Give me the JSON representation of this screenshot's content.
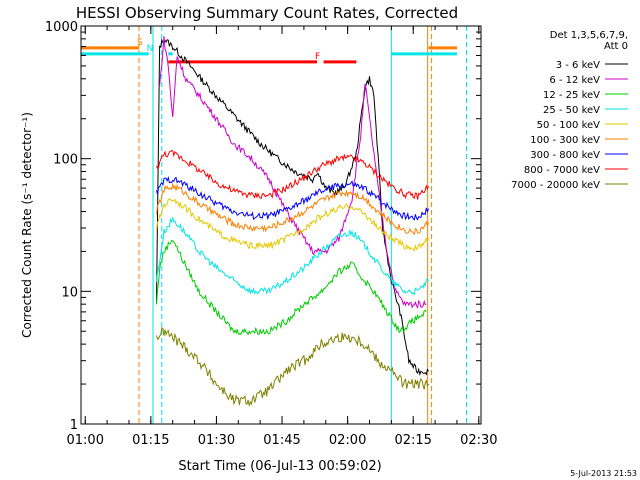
{
  "chart_data": {
    "type": "line",
    "title": "HESSI Observing Summary Count Rates, Corrected",
    "xlabel": "Start Time (06-Jul-13 00:59:02)",
    "ylabel": "Corrected Count Rate (s⁻¹ detector⁻¹)",
    "timestamp": "5-Jul-2013 21:53",
    "y_scale": "log",
    "ylim": [
      1,
      1000
    ],
    "xlim_min": [
      59.03,
      93.5
    ],
    "x_ticks": [
      "01:00",
      "01:15",
      "01:30",
      "01:45",
      "02:00",
      "02:15",
      "02:30"
    ],
    "y_ticks": [
      "1",
      "10",
      "100",
      "1000"
    ],
    "grid": false,
    "legend_header": [
      "Det 1,3,5,6,7,9,",
      "Att 0"
    ],
    "legend_placement": "right",
    "series": [
      {
        "name": "3 - 6 keV",
        "color": "#000000",
        "points": [
          [
            76.3,
            8
          ],
          [
            77,
            700
          ],
          [
            78,
            800
          ],
          [
            80,
            700
          ],
          [
            84,
            500
          ],
          [
            88,
            350
          ],
          [
            92,
            250
          ],
          [
            96,
            180
          ],
          [
            100,
            130
          ],
          [
            104,
            100
          ],
          [
            108,
            80
          ],
          [
            112,
            70
          ],
          [
            113,
            80
          ],
          [
            115,
            60
          ],
          [
            117,
            55
          ],
          [
            119,
            60
          ],
          [
            120,
            70
          ],
          [
            122,
            110
          ],
          [
            124,
            350
          ],
          [
            125,
            400
          ],
          [
            126,
            300
          ],
          [
            127,
            100
          ],
          [
            128,
            30
          ],
          [
            130,
            12
          ],
          [
            132,
            7
          ],
          [
            134,
            3
          ],
          [
            136,
            2.5
          ],
          [
            138,
            2.5
          ],
          [
            138.5,
            2.5
          ]
        ]
      },
      {
        "name": "6 - 12 keV",
        "color": "#cc00cc",
        "points": [
          [
            77,
            350
          ],
          [
            78,
            800
          ],
          [
            79,
            500
          ],
          [
            80,
            200
          ],
          [
            81,
            600
          ],
          [
            83,
            400
          ],
          [
            86,
            300
          ],
          [
            90,
            200
          ],
          [
            94,
            130
          ],
          [
            98,
            100
          ],
          [
            102,
            70
          ],
          [
            106,
            40
          ],
          [
            109,
            28
          ],
          [
            112,
            20
          ],
          [
            115,
            20
          ],
          [
            118,
            25
          ],
          [
            121,
            50
          ],
          [
            123,
            150
          ],
          [
            124,
            370
          ],
          [
            125,
            200
          ],
          [
            127,
            60
          ],
          [
            129,
            20
          ],
          [
            131,
            10
          ],
          [
            133,
            8
          ],
          [
            135,
            8
          ],
          [
            138,
            8
          ]
        ]
      },
      {
        "name": "12 - 25 keV",
        "color": "#00cc00",
        "points": [
          [
            76.3,
            8
          ],
          [
            77,
            15
          ],
          [
            78,
            20
          ],
          [
            80,
            25
          ],
          [
            82,
            18
          ],
          [
            86,
            10
          ],
          [
            90,
            7
          ],
          [
            94,
            5
          ],
          [
            98,
            5
          ],
          [
            102,
            5
          ],
          [
            106,
            6
          ],
          [
            110,
            8
          ],
          [
            114,
            10
          ],
          [
            118,
            14
          ],
          [
            121,
            16
          ],
          [
            123,
            13
          ],
          [
            126,
            10
          ],
          [
            129,
            7
          ],
          [
            132,
            5
          ],
          [
            135,
            6
          ],
          [
            138,
            7
          ]
        ]
      },
      {
        "name": "25 - 50 keV",
        "color": "#00e5e5",
        "points": [
          [
            76.3,
            12
          ],
          [
            78,
            28
          ],
          [
            80,
            35
          ],
          [
            82,
            30
          ],
          [
            86,
            20
          ],
          [
            90,
            15
          ],
          [
            94,
            12
          ],
          [
            98,
            10
          ],
          [
            102,
            10
          ],
          [
            106,
            12
          ],
          [
            110,
            15
          ],
          [
            114,
            20
          ],
          [
            118,
            26
          ],
          [
            121,
            28
          ],
          [
            124,
            22
          ],
          [
            127,
            16
          ],
          [
            130,
            12
          ],
          [
            133,
            10
          ],
          [
            136,
            10
          ],
          [
            138.5,
            12
          ]
        ]
      },
      {
        "name": "50 - 100 keV",
        "color": "#e5c800",
        "points": [
          [
            76.3,
            30
          ],
          [
            78,
            45
          ],
          [
            80,
            50
          ],
          [
            82,
            45
          ],
          [
            86,
            35
          ],
          [
            90,
            28
          ],
          [
            94,
            24
          ],
          [
            98,
            22
          ],
          [
            102,
            22
          ],
          [
            106,
            25
          ],
          [
            110,
            30
          ],
          [
            114,
            37
          ],
          [
            118,
            42
          ],
          [
            121,
            44
          ],
          [
            124,
            38
          ],
          [
            127,
            30
          ],
          [
            130,
            25
          ],
          [
            133,
            22
          ],
          [
            136,
            21
          ],
          [
            138.5,
            25
          ]
        ]
      },
      {
        "name": "100 - 300 keV",
        "color": "#ff7f00",
        "points": [
          [
            76.3,
            40
          ],
          [
            78,
            58
          ],
          [
            80,
            62
          ],
          [
            82,
            58
          ],
          [
            86,
            46
          ],
          [
            90,
            38
          ],
          [
            94,
            32
          ],
          [
            98,
            30
          ],
          [
            102,
            30
          ],
          [
            106,
            34
          ],
          [
            110,
            40
          ],
          [
            114,
            48
          ],
          [
            118,
            55
          ],
          [
            121,
            56
          ],
          [
            124,
            50
          ],
          [
            127,
            40
          ],
          [
            130,
            33
          ],
          [
            133,
            29
          ],
          [
            136,
            28
          ],
          [
            138.5,
            33
          ]
        ]
      },
      {
        "name": "300 - 800 keV",
        "color": "#0000ff",
        "points": [
          [
            76.3,
            55
          ],
          [
            78,
            68
          ],
          [
            80,
            70
          ],
          [
            82,
            66
          ],
          [
            86,
            55
          ],
          [
            90,
            46
          ],
          [
            94,
            40
          ],
          [
            98,
            37
          ],
          [
            102,
            37
          ],
          [
            106,
            41
          ],
          [
            110,
            48
          ],
          [
            114,
            57
          ],
          [
            118,
            63
          ],
          [
            121,
            64
          ],
          [
            124,
            59
          ],
          [
            127,
            50
          ],
          [
            130,
            42
          ],
          [
            133,
            37
          ],
          [
            136,
            36
          ],
          [
            138.5,
            42
          ]
        ]
      },
      {
        "name": "800 - 7000 keV",
        "color": "#ff0000",
        "points": [
          [
            76.3,
            85
          ],
          [
            78,
            108
          ],
          [
            80,
            110
          ],
          [
            82,
            102
          ],
          [
            86,
            82
          ],
          [
            90,
            66
          ],
          [
            94,
            57
          ],
          [
            98,
            53
          ],
          [
            102,
            53
          ],
          [
            106,
            60
          ],
          [
            110,
            72
          ],
          [
            114,
            88
          ],
          [
            118,
            100
          ],
          [
            121,
            102
          ],
          [
            124,
            92
          ],
          [
            127,
            75
          ],
          [
            130,
            62
          ],
          [
            133,
            54
          ],
          [
            136,
            52
          ],
          [
            138.5,
            62
          ]
        ]
      },
      {
        "name": "7000 - 20000 keV",
        "color": "#808000",
        "points": [
          [
            76.3,
            4.5
          ],
          [
            78,
            5
          ],
          [
            80,
            4.5
          ],
          [
            82,
            4
          ],
          [
            86,
            3
          ],
          [
            90,
            2
          ],
          [
            94,
            1.5
          ],
          [
            98,
            1.5
          ],
          [
            102,
            1.8
          ],
          [
            106,
            2.5
          ],
          [
            110,
            3
          ],
          [
            114,
            4
          ],
          [
            118,
            4.5
          ],
          [
            121,
            4.5
          ],
          [
            124,
            4
          ],
          [
            127,
            3
          ],
          [
            130,
            2.5
          ],
          [
            133,
            2
          ],
          [
            136,
            2
          ],
          [
            138.5,
            2
          ]
        ]
      }
    ],
    "flag_bars": [
      {
        "label": "S",
        "color": "#ff7f00",
        "segments": [
          [
            59.03,
            72.3
          ],
          [
            138.5,
            145
          ]
        ],
        "level": 0.945
      },
      {
        "label": "N",
        "color": "#00e5e5",
        "segments": [
          [
            59.03,
            74.5
          ],
          [
            79,
            80
          ],
          [
            130,
            138.5
          ],
          [
            138.5,
            145
          ]
        ],
        "level": 0.93
      },
      {
        "label": "F",
        "color": "#ff0000",
        "segments": [
          [
            79,
            113
          ],
          [
            114.5,
            122
          ]
        ],
        "level": 0.91
      }
    ],
    "vlines": [
      {
        "x": 72.3,
        "color": "#ff7f00",
        "dash": true
      },
      {
        "x": 75.5,
        "color": "#00e5e5",
        "dash": false
      },
      {
        "x": 77.5,
        "color": "#00e5e5",
        "dash": true
      },
      {
        "x": 130,
        "color": "#00e5e5",
        "dash": false
      },
      {
        "x": 138.3,
        "color": "#ff7f00",
        "dash": false
      },
      {
        "x": 139.2,
        "color": "#ff7f00",
        "dash": true
      },
      {
        "x": 147.2,
        "color": "#00e5e5",
        "dash": true
      }
    ]
  }
}
